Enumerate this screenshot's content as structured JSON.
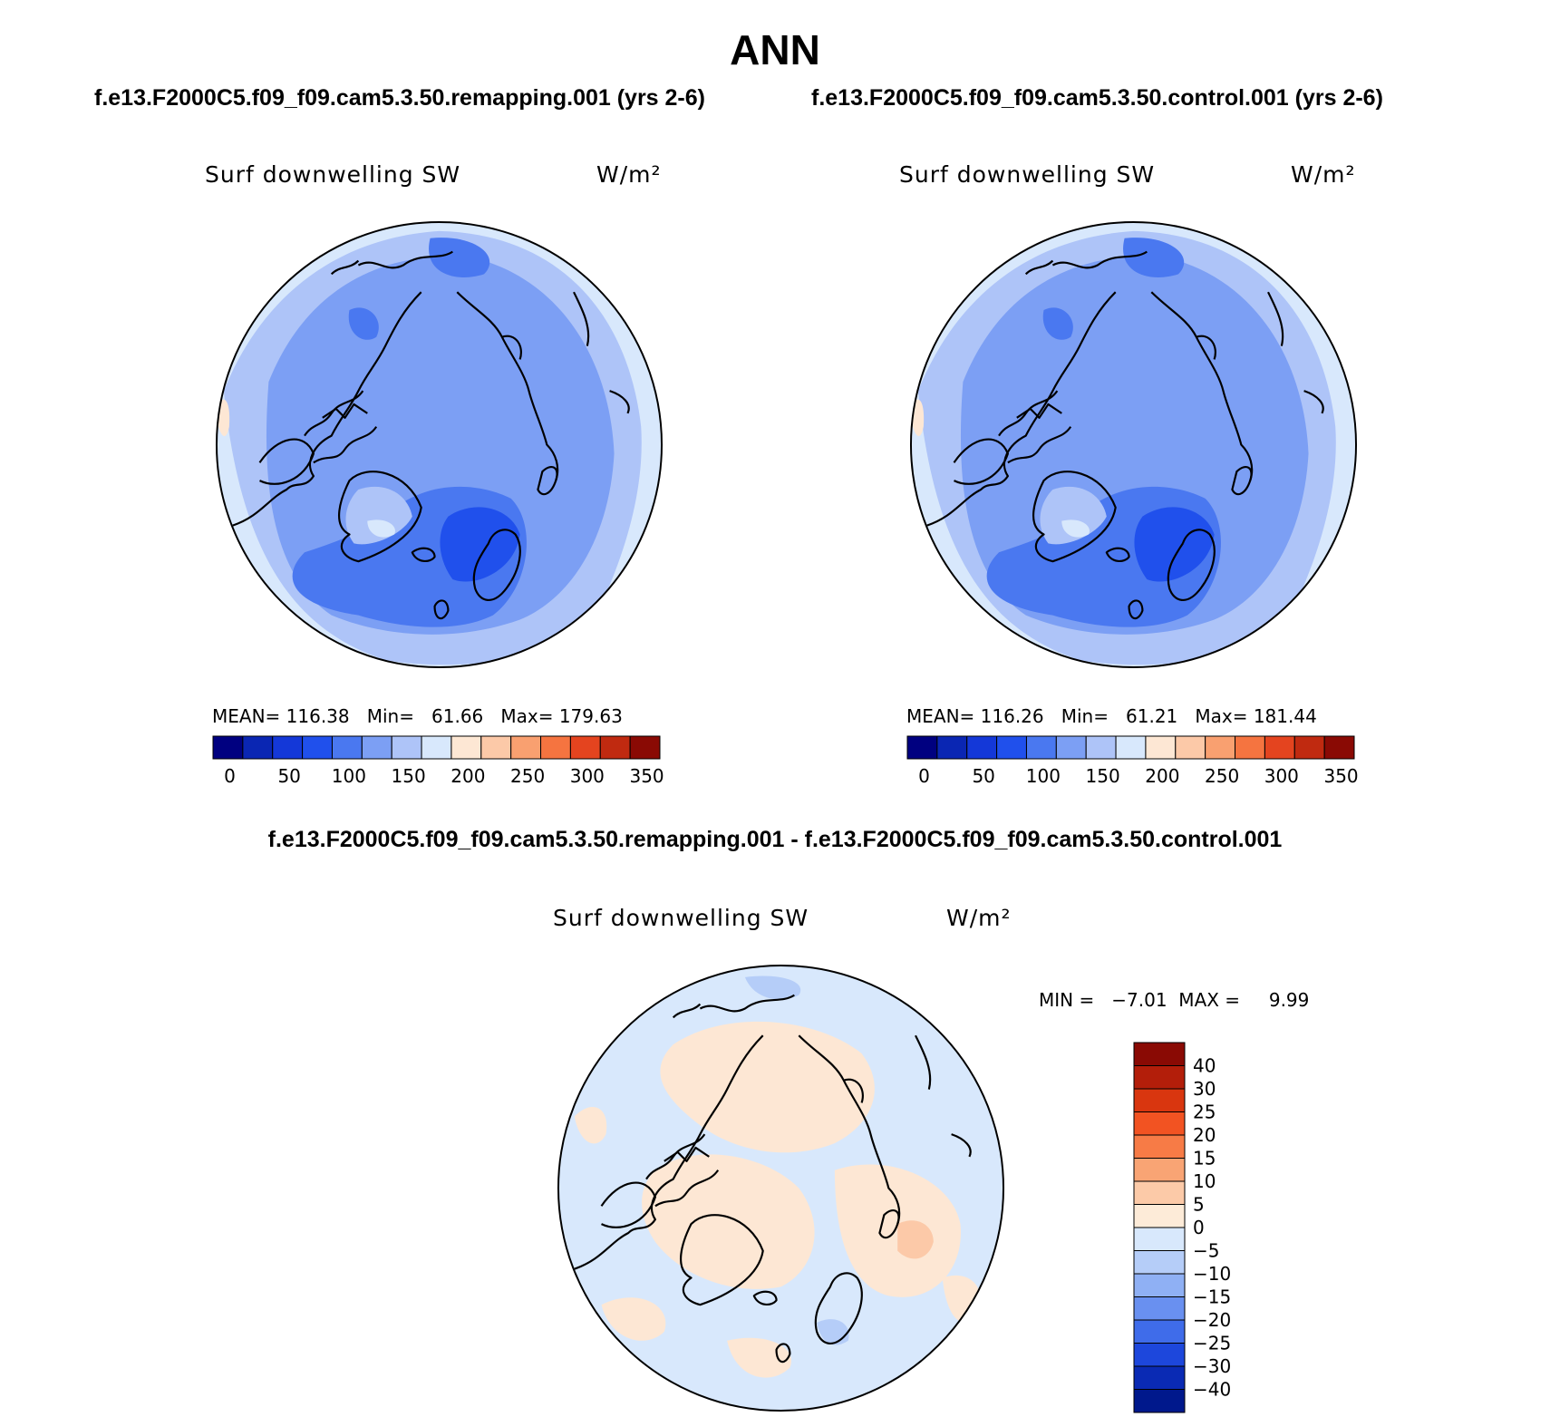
{
  "page": {
    "title": "ANN",
    "case_title_left": "f.e13.F2000C5.f09_f09.cam5.3.50.remapping.001 (yrs 2-6)",
    "case_title_right": "f.e13.F2000C5.f09_f09.cam5.3.50.control.001 (yrs 2-6)",
    "diff_title": "f.e13.F2000C5.f09_f09.cam5.3.50.remapping.001 - f.e13.F2000C5.f09_f09.cam5.3.50.control.001"
  },
  "panels": {
    "left": {
      "variable": "Surf downwelling SW",
      "units": "W/m²",
      "stats": "MEAN= 116.38   Min=   61.66   Max= 179.63"
    },
    "right": {
      "variable": "Surf downwelling SW",
      "units": "W/m²",
      "stats": "MEAN= 116.26   Min=   61.21   Max= 181.44"
    },
    "diff": {
      "variable": "Surf downwelling SW",
      "units": "W/m²",
      "stats": "MIN =   −7.01  MAX =     9.99"
    }
  },
  "colorbars": {
    "abs_colors": [
      "#000080",
      "#0a26b3",
      "#1438d8",
      "#2050ec",
      "#4a78f0",
      "#7c9ff4",
      "#aec4f8",
      "#d8e8fc",
      "#fde7d4",
      "#fcc9a8",
      "#f9a070",
      "#f57440",
      "#e4441f",
      "#c02a10",
      "#8a0a04"
    ],
    "abs_labels": [
      "0",
      "50",
      "100",
      "150",
      "200",
      "250",
      "300",
      "350"
    ],
    "diff_colors": [
      "#8a0a04",
      "#b31e0a",
      "#d9360f",
      "#f25322",
      "#f77b46",
      "#f9a474",
      "#fccaa8",
      "#fdebd8",
      "#d8e8fc",
      "#b5cdf8",
      "#8fb0f4",
      "#6990f0",
      "#3f6cea",
      "#1d47dc",
      "#0a2ab4",
      "#00188c"
    ],
    "diff_labels": [
      "40",
      "30",
      "25",
      "20",
      "15",
      "10",
      "5",
      "0",
      "−5",
      "−10",
      "−15",
      "−20",
      "−25",
      "−30",
      "−40"
    ]
  },
  "map_colors": {
    "abs_outer": "#d8e8fc",
    "abs_ring": "#aec4f8",
    "abs_mid": "#7c9ff4",
    "abs_inner": "#4a78f0",
    "abs_low": "#2050ec",
    "abs_warm": "#fde7d4",
    "diff_base": "#d8e8fc",
    "diff_pos": "#fde7d4",
    "diff_pos2": "#fcc9a8",
    "diff_neg": "#b5cdf8",
    "coast": "#000000"
  }
}
